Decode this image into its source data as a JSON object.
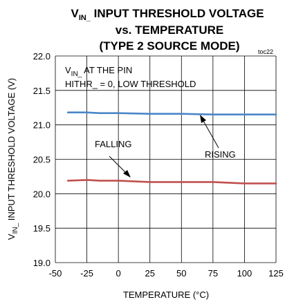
{
  "chart_data": {
    "type": "line",
    "title_lines": [
      {
        "main": "V",
        "sub": "IN_",
        "rest": " INPUT THRESHOLD VOLTAGE"
      },
      {
        "main": "vs. TEMPERATURE"
      },
      {
        "main": "(TYPE 2 SOURCE MODE)"
      }
    ],
    "figure_id": "toc22",
    "xlabel": "TEMPERATURE (°C)",
    "ylabel": {
      "main": "V",
      "sub": "IN_",
      "rest": " INPUT THRESHOLD VOLTAGE (V)"
    },
    "xlim": [
      -50,
      125
    ],
    "ylim": [
      19.0,
      22.0
    ],
    "x_ticks": [
      -50,
      -25,
      0,
      25,
      50,
      75,
      100,
      125
    ],
    "y_ticks": [
      19.0,
      19.5,
      20.0,
      20.5,
      21.0,
      21.5,
      22.0
    ],
    "y_tick_labels": [
      "19.0",
      "19.5",
      "20.0",
      "20.5",
      "21.0",
      "21.5",
      "22.0"
    ],
    "grid": true,
    "condition_lines": [
      {
        "main": "V",
        "sub": "IN_",
        "rest": " AT THE PIN"
      },
      {
        "main": "HITHR_ = 0, LOW THRESHOLD"
      }
    ],
    "series": [
      {
        "name": "RISING",
        "color": "#4a86c8",
        "x": [
          -40,
          -25,
          -15,
          0,
          25,
          50,
          75,
          100,
          125
        ],
        "y": [
          21.18,
          21.18,
          21.17,
          21.17,
          21.16,
          21.16,
          21.15,
          21.15,
          21.15
        ]
      },
      {
        "name": "FALLING",
        "color": "#c0504d",
        "x": [
          -40,
          -25,
          -15,
          0,
          25,
          50,
          75,
          100,
          125
        ],
        "y": [
          20.19,
          20.2,
          20.19,
          20.19,
          20.17,
          20.17,
          20.17,
          20.15,
          20.15
        ]
      }
    ]
  }
}
